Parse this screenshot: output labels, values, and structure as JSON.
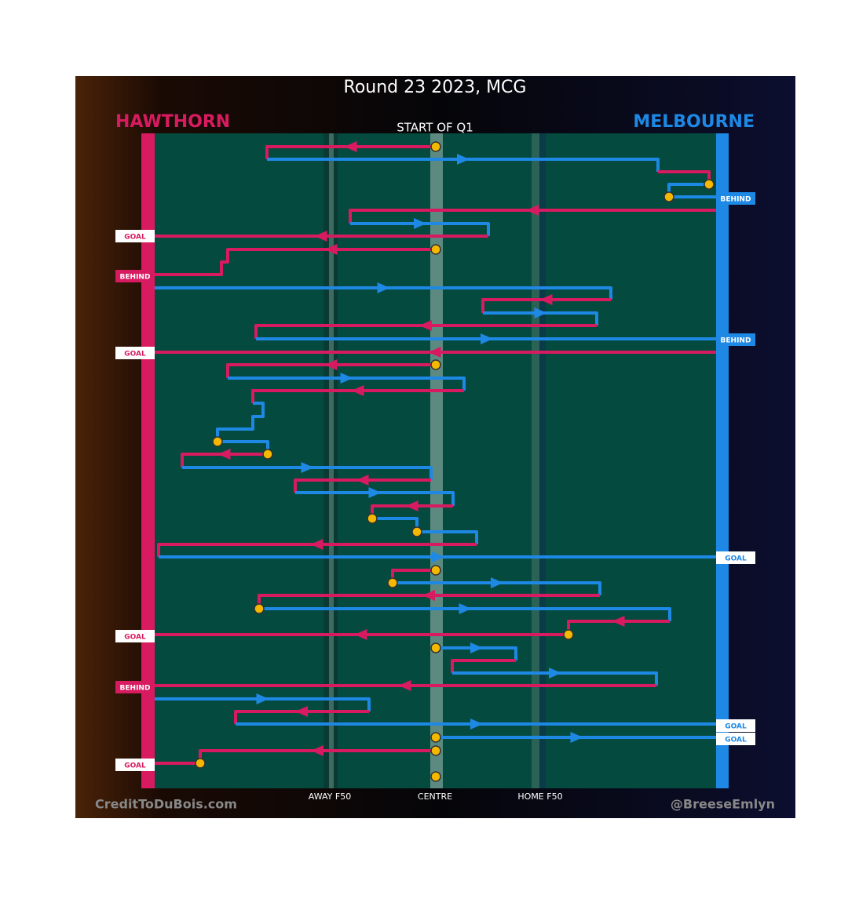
{
  "title": "Round 23 2023, MCG",
  "home_team": "HAWTHORN",
  "away_team": "MELBOURNE",
  "start_label": "START OF Q1",
  "zones": [
    "AWAY F50",
    "CENTRE",
    "HOME F50"
  ],
  "outcomes": [
    "BEHIND",
    "GOAL",
    "BEHIND",
    "BEHIND",
    "GOAL",
    "GOAL",
    "GOAL",
    "BEHIND",
    "GOAL",
    "GOAL",
    "GOAL"
  ],
  "credit_left": "CreditToDuBois.com",
  "credit_right": "@BreeseEmlyn"
}
